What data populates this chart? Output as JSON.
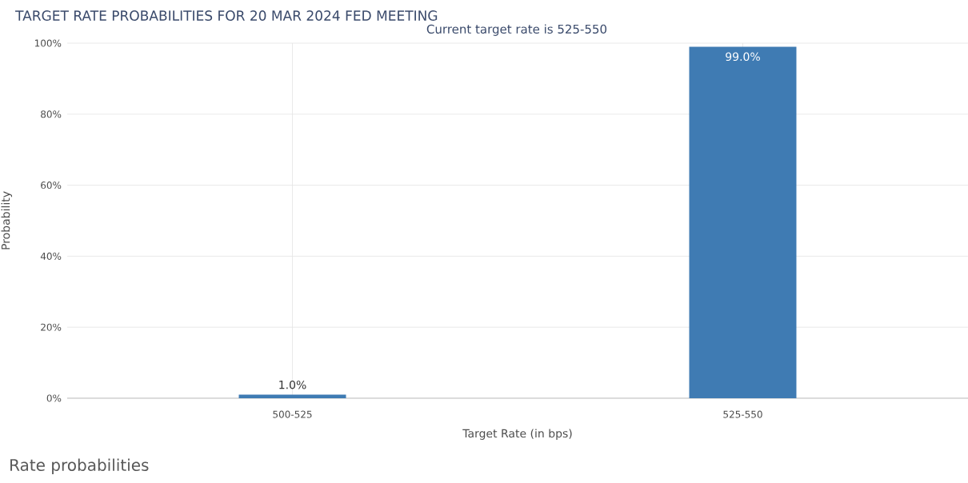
{
  "chart_data": {
    "type": "bar",
    "title": "TARGET RATE PROBABILITIES FOR 20 MAR 2024 FED MEETING",
    "subtitle": "Current target rate is 525-550",
    "xlabel": "Target Rate (in bps)",
    "ylabel": "Probability",
    "categories": [
      "500-525",
      "525-550"
    ],
    "values": [
      1,
      99
    ],
    "value_labels": [
      "1.0%",
      "99.0%"
    ],
    "color": "#3f7bb3",
    "ylim": [
      0,
      100
    ],
    "yticks": [
      {
        "value": 0,
        "label": "0%"
      },
      {
        "value": 20,
        "label": "20%"
      },
      {
        "value": 40,
        "label": "40%"
      },
      {
        "value": 60,
        "label": "60%"
      },
      {
        "value": 80,
        "label": "80%"
      },
      {
        "value": 100,
        "label": "100%"
      }
    ],
    "grid": true,
    "annotations": [
      "Rate probabilities"
    ]
  }
}
